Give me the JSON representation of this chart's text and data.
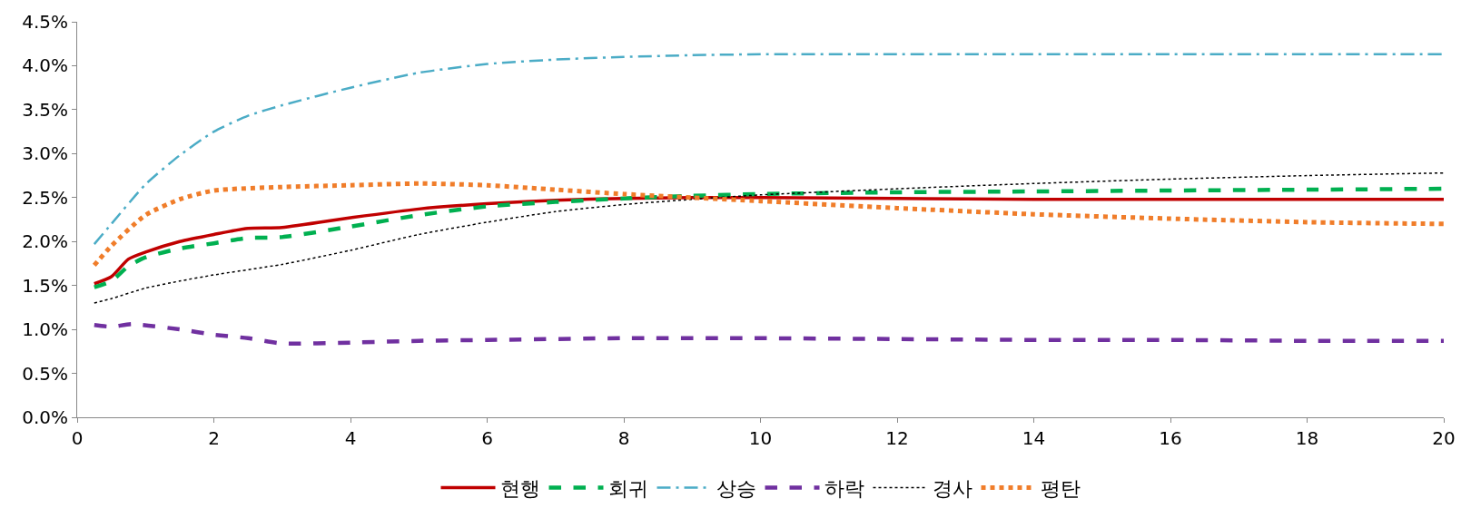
{
  "chart_data": {
    "type": "line",
    "xlim": [
      0,
      20
    ],
    "xticks": [
      0,
      2,
      4,
      6,
      8,
      10,
      12,
      14,
      16,
      18,
      20
    ],
    "ylim": [
      0,
      4.5
    ],
    "yticks": [
      {
        "value": 0,
        "label": "0.0%"
      },
      {
        "value": 0.5,
        "label": "0.5%"
      },
      {
        "value": 1,
        "label": "1.0%"
      },
      {
        "value": 1.5,
        "label": "1.5%"
      },
      {
        "value": 2,
        "label": "2.0%"
      },
      {
        "value": 2.5,
        "label": "2.5%"
      },
      {
        "value": 3,
        "label": "3.0%"
      },
      {
        "value": 3.5,
        "label": "3.5%"
      },
      {
        "value": 4,
        "label": "4.0%"
      },
      {
        "value": 4.5,
        "label": "4.5%"
      }
    ],
    "legend": "bottom",
    "marker": "none",
    "series": [
      {
        "name": "현행",
        "color": "#c00000",
        "line_style": "solid",
        "x": [
          0.25,
          0.5,
          0.75,
          1,
          1.5,
          2,
          2.5,
          3,
          4,
          5,
          6,
          7,
          8,
          9,
          10,
          12,
          14,
          16,
          18,
          20
        ],
        "values": [
          1.52,
          1.6,
          1.8,
          1.88,
          2.0,
          2.08,
          2.15,
          2.16,
          2.27,
          2.37,
          2.43,
          2.47,
          2.49,
          2.5,
          2.5,
          2.49,
          2.48,
          2.48,
          2.48,
          2.48
        ]
      },
      {
        "name": "회귀",
        "color": "#00b050",
        "line_style": "dashed",
        "x": [
          0.25,
          0.5,
          0.75,
          1,
          1.5,
          2,
          2.5,
          3,
          4,
          5,
          6,
          7,
          8,
          9,
          10,
          12,
          14,
          16,
          18,
          20
        ],
        "values": [
          1.48,
          1.55,
          1.72,
          1.82,
          1.92,
          1.98,
          2.04,
          2.05,
          2.17,
          2.3,
          2.4,
          2.45,
          2.49,
          2.52,
          2.54,
          2.56,
          2.57,
          2.58,
          2.59,
          2.6
        ]
      },
      {
        "name": "상승",
        "color": "#4bacc6",
        "line_style": "dashdot",
        "x": [
          0.25,
          0.5,
          1,
          1.5,
          2,
          2.5,
          3,
          4,
          5,
          6,
          7,
          8,
          9,
          10,
          12,
          14,
          16,
          18,
          20
        ],
        "values": [
          1.97,
          2.2,
          2.65,
          2.98,
          3.25,
          3.43,
          3.55,
          3.75,
          3.92,
          4.02,
          4.07,
          4.1,
          4.12,
          4.13,
          4.13,
          4.13,
          4.13,
          4.13,
          4.13
        ]
      },
      {
        "name": "하락",
        "color": "#7030a0",
        "line_style": "dashed",
        "x": [
          0.25,
          0.5,
          0.8,
          1.5,
          2,
          2.5,
          3,
          4,
          5,
          6,
          8,
          10,
          12,
          14,
          16,
          18,
          20
        ],
        "values": [
          1.05,
          1.03,
          1.06,
          1.0,
          0.94,
          0.9,
          0.84,
          0.85,
          0.87,
          0.88,
          0.9,
          0.9,
          0.89,
          0.88,
          0.88,
          0.87,
          0.87
        ]
      },
      {
        "name": "경사",
        "color": "#000000",
        "line_style": "dotted",
        "x": [
          0.25,
          0.5,
          1,
          1.5,
          2,
          3,
          4,
          5,
          6,
          7,
          8,
          9,
          10,
          12,
          14,
          16,
          18,
          20
        ],
        "values": [
          1.3,
          1.35,
          1.47,
          1.55,
          1.62,
          1.74,
          1.9,
          2.08,
          2.22,
          2.34,
          2.42,
          2.48,
          2.53,
          2.6,
          2.66,
          2.71,
          2.75,
          2.78
        ]
      },
      {
        "name": "평탄",
        "color": "#f07d2a",
        "line_style": "dotted",
        "x": [
          0.25,
          0.5,
          1,
          1.5,
          2,
          3,
          4,
          5,
          6,
          7,
          8,
          9,
          10,
          12,
          14,
          16,
          18,
          20
        ],
        "values": [
          1.73,
          1.95,
          2.3,
          2.48,
          2.58,
          2.62,
          2.64,
          2.66,
          2.64,
          2.59,
          2.54,
          2.5,
          2.46,
          2.38,
          2.31,
          2.26,
          2.22,
          2.2
        ]
      }
    ]
  }
}
